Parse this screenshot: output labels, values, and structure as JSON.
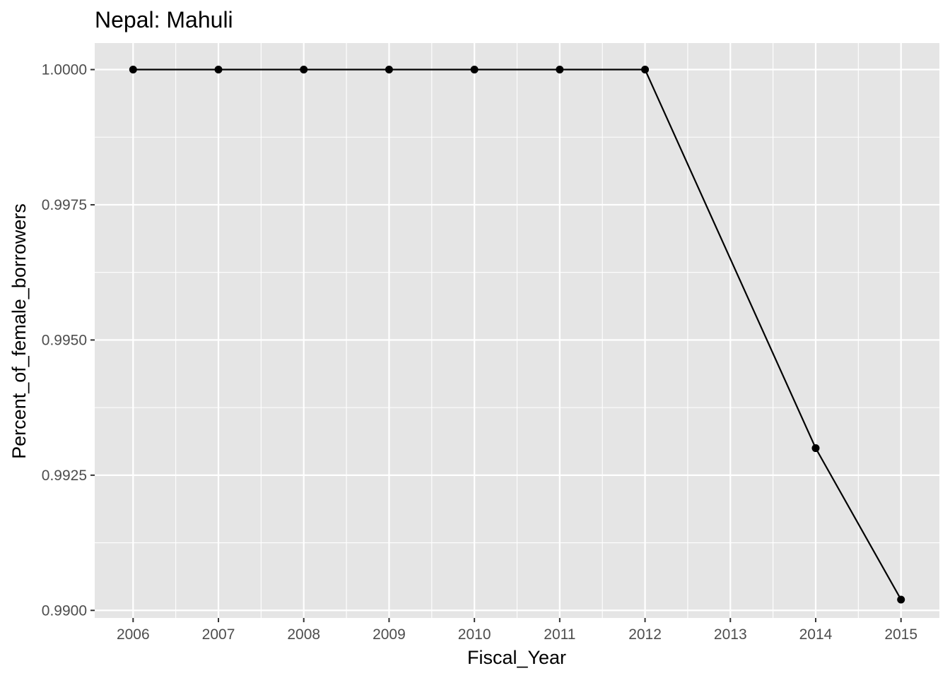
{
  "chart_data": {
    "type": "line",
    "title": "Nepal:  Mahuli",
    "xlabel": "Fiscal_Year",
    "ylabel": "Percent_of_female_borrowers",
    "x": [
      2006,
      2007,
      2008,
      2009,
      2010,
      2011,
      2012,
      2014,
      2015
    ],
    "y": [
      1.0,
      1.0,
      1.0,
      1.0,
      1.0,
      1.0,
      1.0,
      0.993,
      0.9902
    ],
    "xlim": [
      2005.55,
      2015.45
    ],
    "ylim": [
      0.98986,
      1.00049
    ],
    "x_ticks": [
      2006,
      2007,
      2008,
      2009,
      2010,
      2011,
      2012,
      2013,
      2014,
      2015
    ],
    "x_tick_labels": [
      "2006",
      "2007",
      "2008",
      "2009",
      "2010",
      "2011",
      "2012",
      "2013",
      "2014",
      "2015"
    ],
    "y_ticks": [
      0.99,
      0.9925,
      0.995,
      0.9975,
      1.0
    ],
    "y_tick_labels": [
      "0.9900",
      "0.9925",
      "0.9950",
      "0.9975",
      "1.0000"
    ],
    "grid": true,
    "legend": "none",
    "colors": {
      "panel_background": "#e5e5e5",
      "grid": "#ffffff",
      "line": "#000000",
      "point": "#000000",
      "tick_label": "#4d4d4d"
    }
  }
}
